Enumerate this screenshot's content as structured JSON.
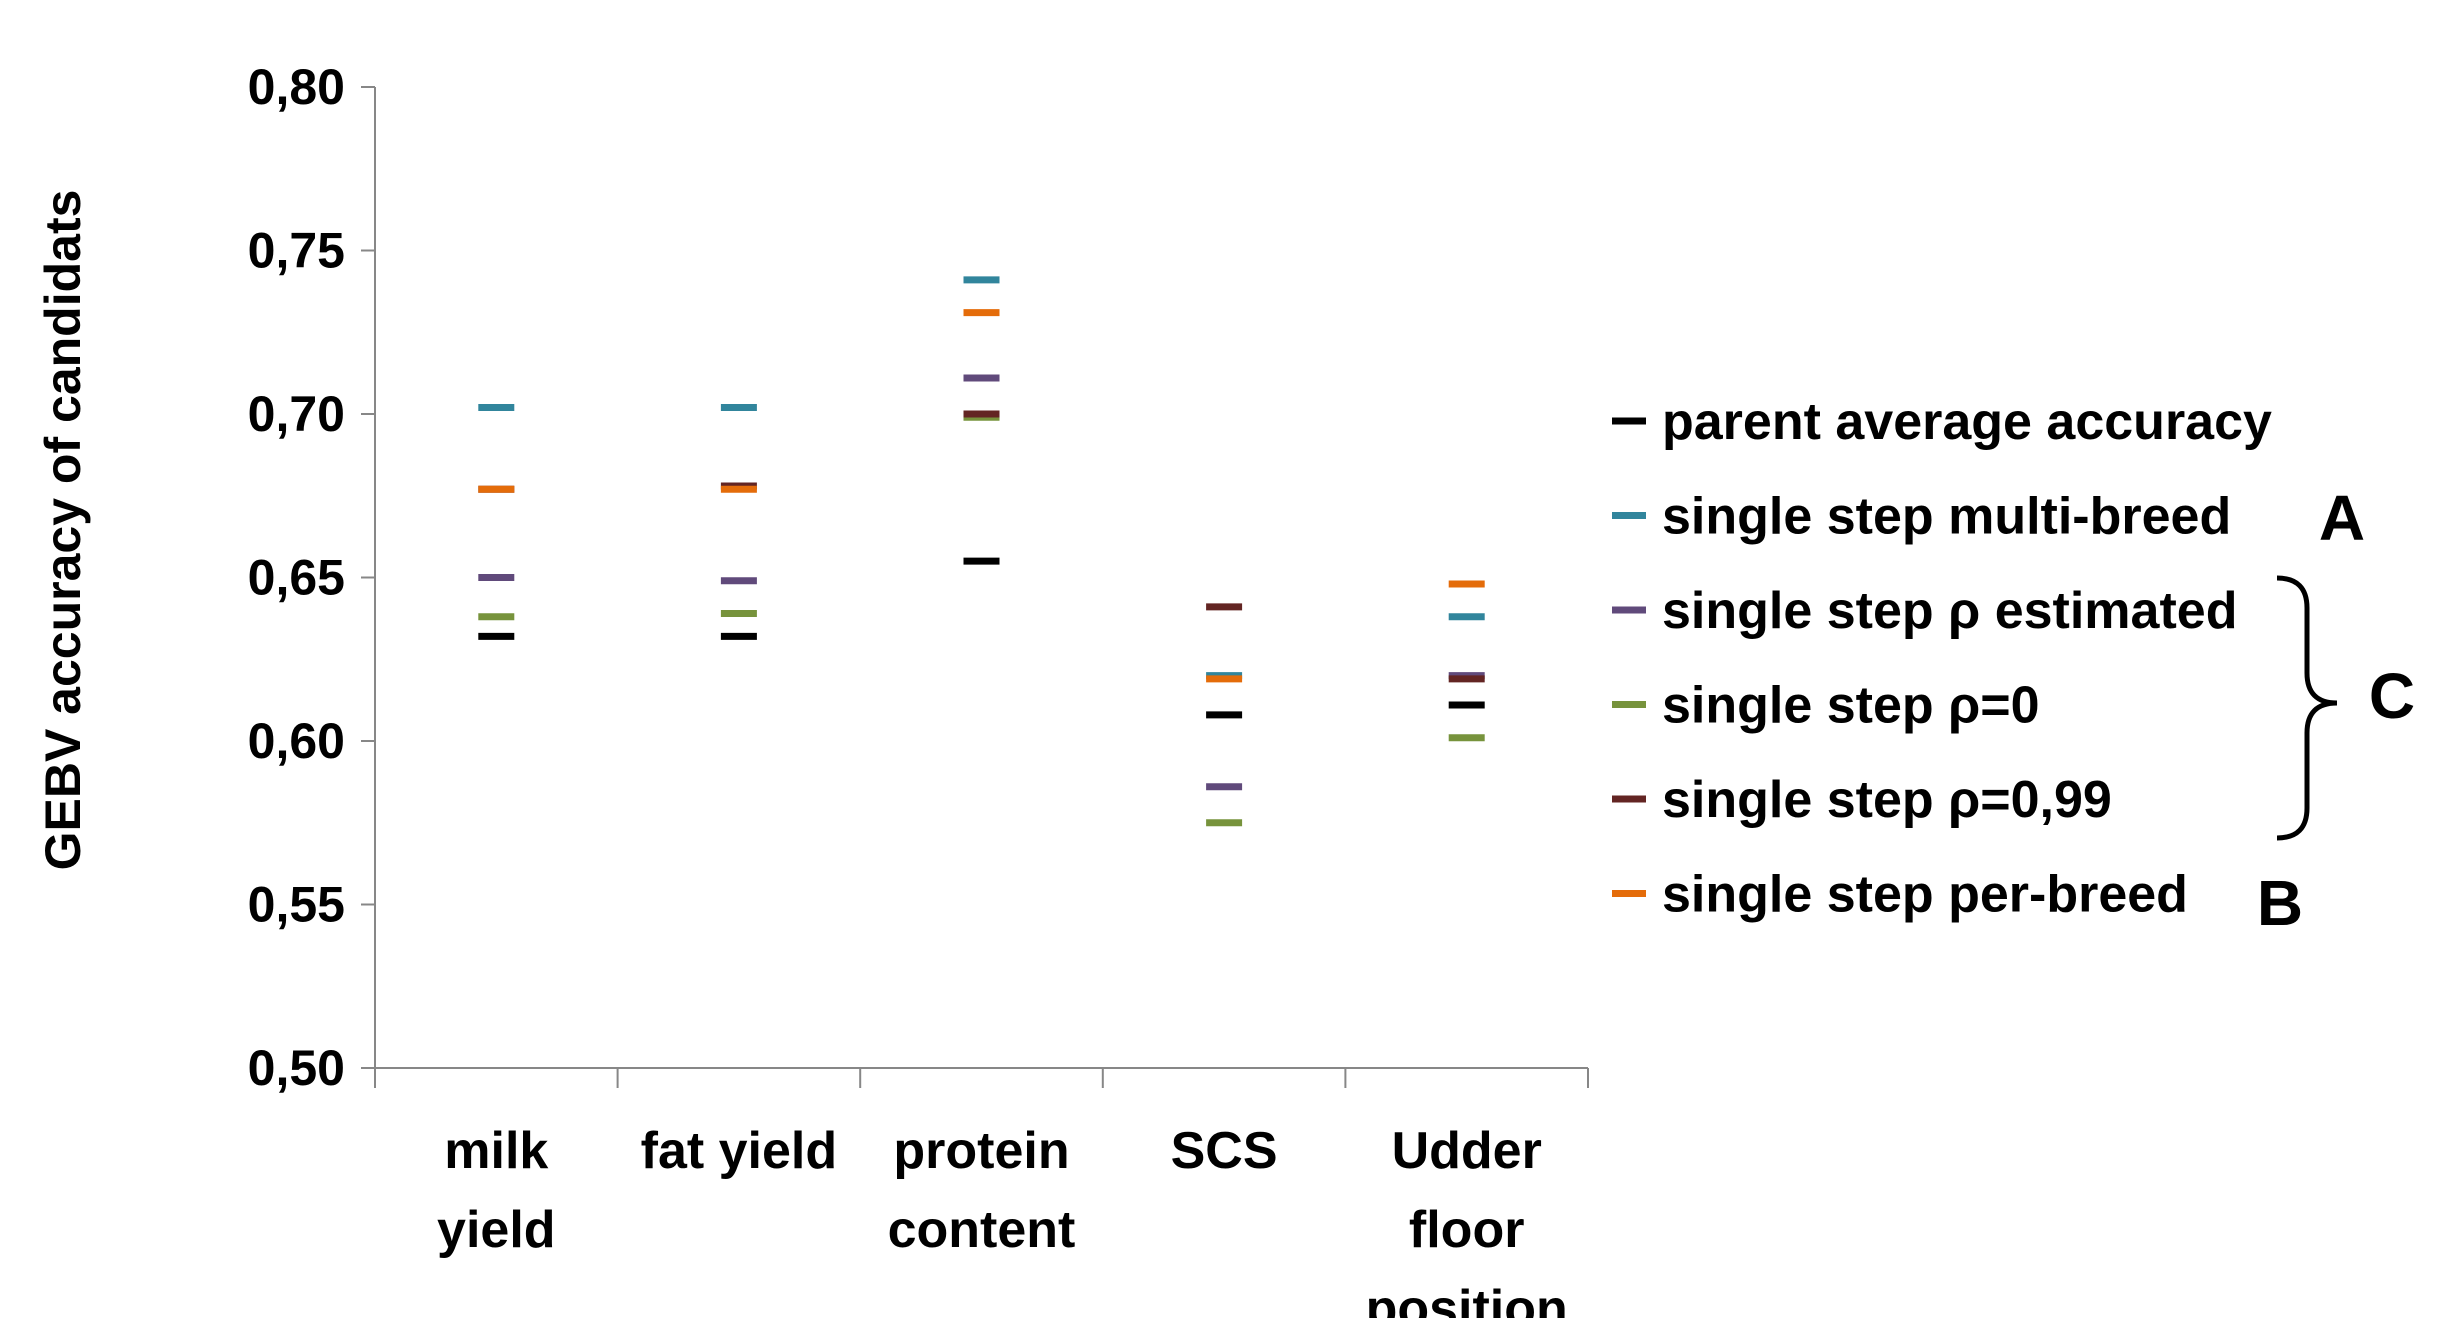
{
  "chart_data": {
    "type": "scatter",
    "title": "",
    "xlabel": "",
    "ylabel": "GEBV accuracy of candidats",
    "ylim": [
      0.5,
      0.8
    ],
    "y_ticks": [
      "0,50",
      "0,55",
      "0,60",
      "0,65",
      "0,70",
      "0,75",
      "0,80"
    ],
    "categories": [
      [
        "milk",
        "yield"
      ],
      [
        "fat yield"
      ],
      [
        "protein",
        "content"
      ],
      [
        "SCS"
      ],
      [
        "Udder",
        "floor",
        "position"
      ]
    ],
    "grid": false,
    "legend_position": "right",
    "series": [
      {
        "name": "parent average accuracy",
        "color": "#000000",
        "values": [
          0.632,
          0.632,
          0.655,
          0.608,
          0.611
        ]
      },
      {
        "name": "single step multi-breed",
        "color": "#31859C",
        "values": [
          0.702,
          0.702,
          0.741,
          0.62,
          0.638
        ]
      },
      {
        "name": "single step ρ estimated",
        "color": "#604A7B",
        "values": [
          0.65,
          0.649,
          0.711,
          0.586,
          0.62
        ]
      },
      {
        "name": "single step ρ=0",
        "color": "#77933C",
        "values": [
          0.638,
          0.639,
          0.699,
          0.575,
          0.601
        ]
      },
      {
        "name": "single step ρ=0,99",
        "color": "#632523",
        "values": [
          0.677,
          0.678,
          0.7,
          0.641,
          0.619
        ]
      },
      {
        "name": "single step per-breed",
        "color": "#E46C0A",
        "values": [
          0.677,
          0.677,
          0.731,
          0.619,
          0.648
        ]
      }
    ],
    "annotations": {
      "a": "A",
      "b": "B",
      "c": "C"
    }
  }
}
